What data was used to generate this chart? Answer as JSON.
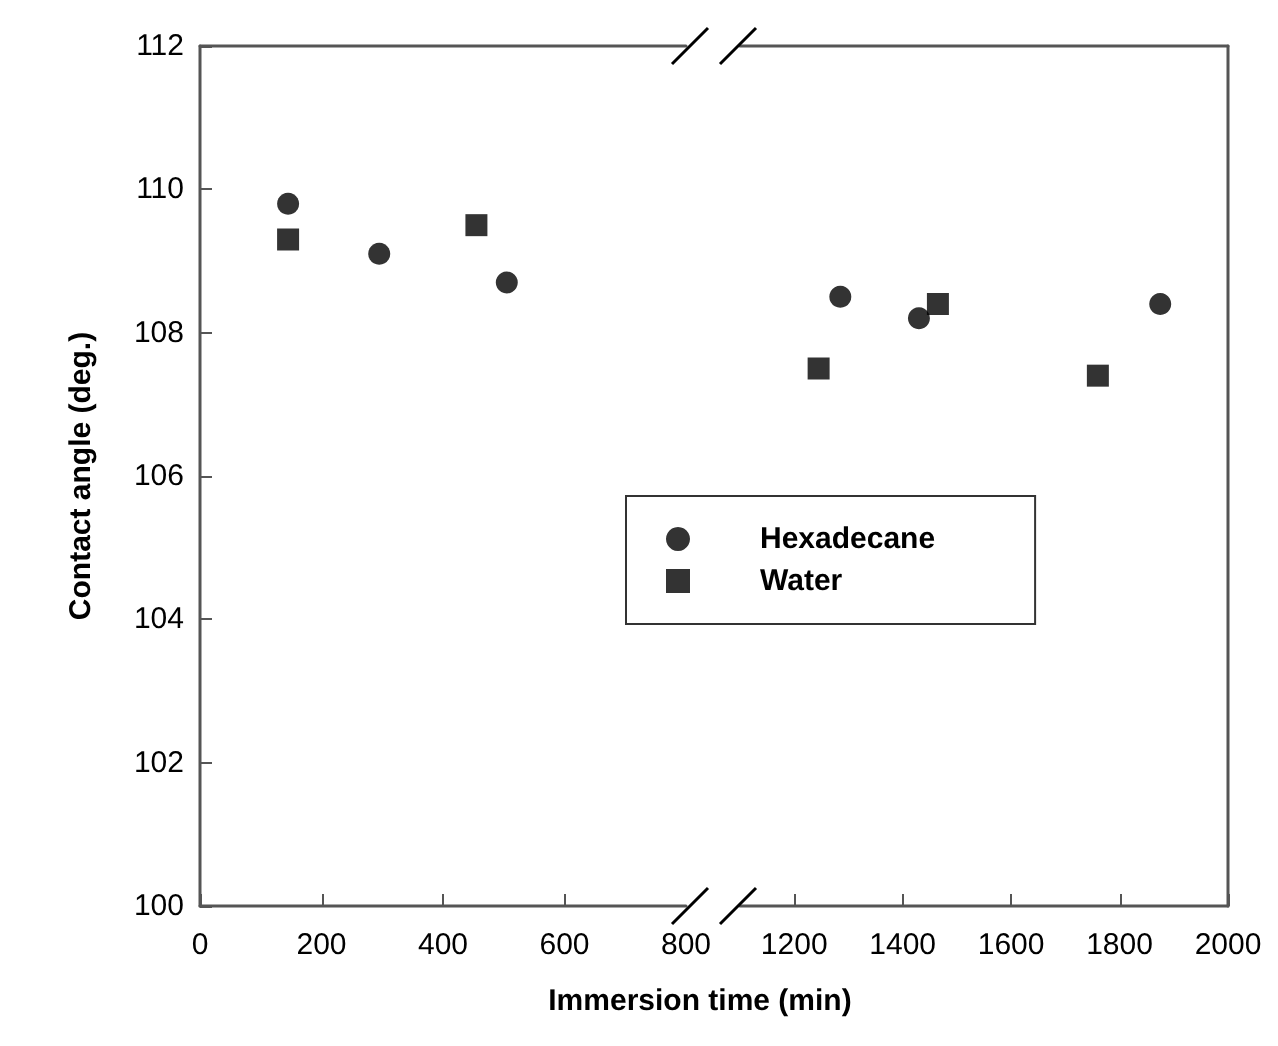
{
  "chart_data": [
    {
      "type": "scatter",
      "xlabel": "Immersion time (min)",
      "ylabel": "Contact angle (deg.)",
      "xlim": [
        0,
        800
      ],
      "xticks": [
        0,
        200,
        400,
        600,
        800
      ],
      "ylim": [
        100,
        112
      ],
      "yticks": [
        100,
        102,
        104,
        106,
        108,
        110,
        112
      ],
      "grid": false,
      "legend": false,
      "series": [
        {
          "color": "#000000",
          "marker": "circle",
          "x": [
            145,
            295,
            505
          ],
          "values": [
            109.8,
            109.1,
            108.7
          ]
        },
        {
          "color": "#000000",
          "marker": "square",
          "x": [
            145,
            455
          ],
          "values": [
            109.3,
            109.5
          ]
        }
      ]
    },
    {
      "type": "scatter",
      "xlim": [
        1100,
        2000
      ],
      "xticks": [
        1200,
        1400,
        1600,
        1800,
        2000
      ],
      "ylim": [
        100,
        112
      ],
      "yticks": [
        100,
        102,
        104,
        106,
        108,
        110,
        112
      ],
      "tick_labels": "x",
      "grid": false,
      "legend": "center",
      "series": [
        {
          "name": "Hexadecane",
          "color": "#000000",
          "marker": "circle",
          "x": [
            1285,
            1430,
            1875
          ],
          "values": [
            108.5,
            108.2,
            108.4
          ]
        },
        {
          "name": "Water",
          "color": "#000000",
          "marker": "square",
          "x": [
            1245,
            1465,
            1760
          ],
          "values": [
            107.5,
            108.4,
            107.4
          ]
        }
      ]
    }
  ]
}
